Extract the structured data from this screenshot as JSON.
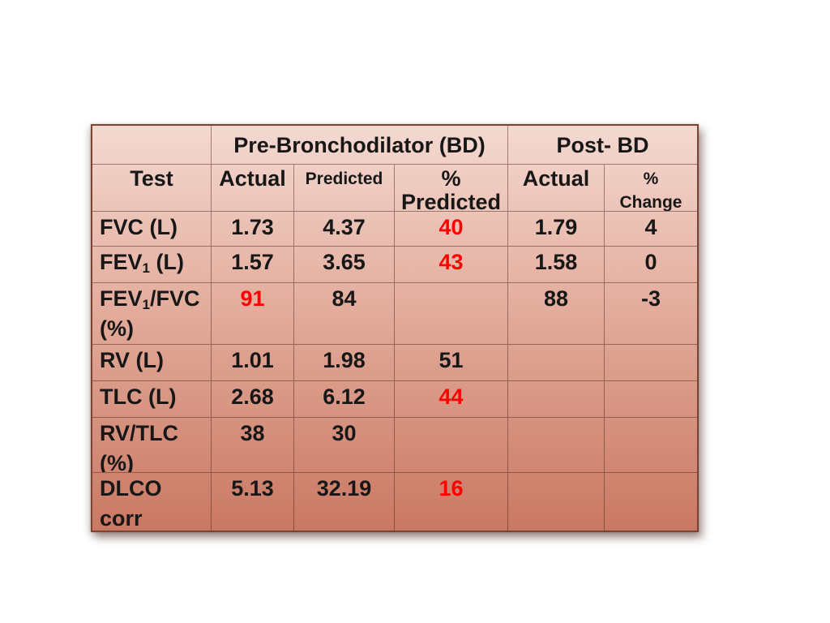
{
  "slide": {
    "background": "#ffffff"
  },
  "colors": {
    "table_gradient_top": "#f4d9d1",
    "table_gradient_bottom": "#c97862",
    "grid_line": "#7a4435",
    "text": "#171717",
    "highlight_red": "#ff0000"
  },
  "table": {
    "group_headers": {
      "corner_spacer": "",
      "pre_bd": "Pre-Bronchodilator (BD)",
      "post_bd": "Post- BD"
    },
    "column_headers": {
      "test": "Test",
      "pre_actual": "Actual",
      "pre_predicted": "Predicted",
      "pct_predicted_line1": "%",
      "pct_predicted_line2": "Predicted",
      "post_actual": "Actual",
      "pct_change_line1": "%",
      "pct_change_line2": "Change"
    },
    "rows": [
      {
        "test": "FVC (L)",
        "actual": "1.73",
        "predicted": "4.37",
        "pct_predicted": "40",
        "post_actual": "1.79",
        "pct_change": "4"
      },
      {
        "test_pre": "FEV",
        "test_sub": "1",
        "test_post": " (L)",
        "actual": "1.57",
        "predicted": "3.65",
        "pct_predicted": "43",
        "post_actual": "1.58",
        "pct_change": "0"
      },
      {
        "test_pre": "FEV",
        "test_sub": "1",
        "test_post": "/FVC",
        "test_line2": "(%)",
        "actual": "91",
        "predicted": "84",
        "pct_predicted": "",
        "post_actual": "88",
        "pct_change": "-3"
      },
      {
        "test": "RV (L)",
        "actual": "1.01",
        "predicted": "1.98",
        "pct_predicted": "51",
        "post_actual": "",
        "pct_change": ""
      },
      {
        "test": "TLC (L)",
        "actual": "2.68",
        "predicted": "6.12",
        "pct_predicted": "44",
        "post_actual": "",
        "pct_change": ""
      },
      {
        "test_line1": "RV/TLC",
        "test_line2": "(%)",
        "actual": "38",
        "predicted": "30",
        "pct_predicted": "",
        "post_actual": "",
        "pct_change": ""
      },
      {
        "test_line1": "DLCO",
        "test_line2": "corr",
        "actual": "5.13",
        "predicted": "32.19",
        "pct_predicted": "16",
        "post_actual": "",
        "pct_change": ""
      }
    ]
  }
}
